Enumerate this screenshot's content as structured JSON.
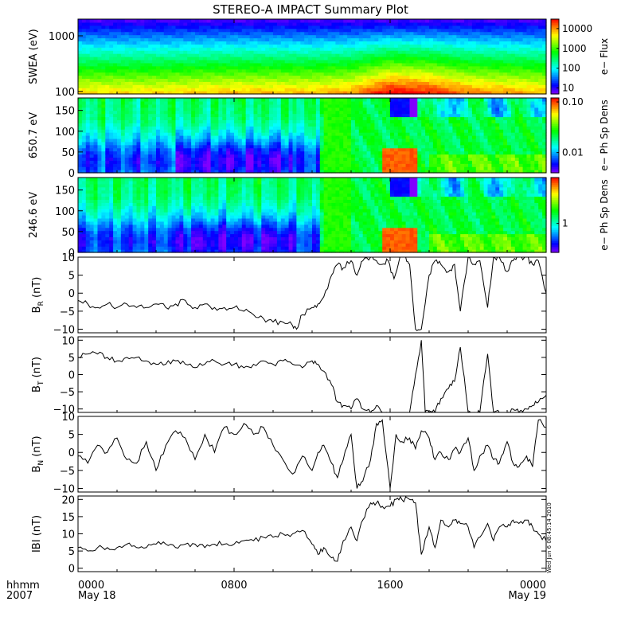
{
  "title": "STEREO-A IMPACT Summary Plot",
  "timestamp": "Wed Jun 6 08:45:14 2010",
  "time_axis": {
    "label_line1": "hhmm",
    "label_line2": "2007",
    "ticks": [
      {
        "hours": 0,
        "label": "0000",
        "date": "May 18"
      },
      {
        "hours": 8,
        "label": "0800",
        "date": ""
      },
      {
        "hours": 16,
        "label": "1600",
        "date": ""
      },
      {
        "hours": 24,
        "label": "0000",
        "date": "May 19"
      }
    ],
    "range_hours": [
      0,
      24
    ]
  },
  "chart_data": [
    {
      "type": "heatmap",
      "id": "swea",
      "ylabel": "SWEA (eV)",
      "yscale": "log",
      "ylim": [
        90,
        2000
      ],
      "yticks": [
        {
          "v": 100,
          "label": "100"
        },
        {
          "v": 1000,
          "label": "1000"
        }
      ],
      "colorbar": {
        "label": "e− Flux",
        "scale": "log",
        "range": [
          5,
          30000
        ],
        "ticks": [
          {
            "v": 10,
            "label": "10"
          },
          {
            "v": 100,
            "label": "100"
          },
          {
            "v": 1000,
            "label": "1000"
          },
          {
            "v": 10000,
            "label": "10000"
          }
        ]
      },
      "description_profile": {
        "hours": [
          0,
          4,
          8,
          12,
          14,
          16,
          18,
          20,
          22,
          24
        ],
        "enhancement": [
          0.0,
          0.0,
          0.05,
          0.05,
          0.1,
          0.35,
          0.3,
          0.15,
          0.1,
          0.05
        ]
      }
    },
    {
      "type": "heatmap",
      "id": "pad650",
      "ylabel": "650.7 eV",
      "ylim": [
        0,
        180
      ],
      "yticks": [
        {
          "v": 0,
          "label": "0"
        },
        {
          "v": 50,
          "label": "50"
        },
        {
          "v": 100,
          "label": "100"
        },
        {
          "v": 150,
          "label": "150"
        }
      ],
      "colorbar": {
        "label": "e− Ph Sp Dens",
        "scale": "log",
        "range": [
          0.004,
          0.12
        ],
        "ticks": [
          {
            "v": 0.01,
            "label": "0.01"
          },
          {
            "v": 0.1,
            "label": "0.10"
          }
        ]
      }
    },
    {
      "type": "heatmap",
      "id": "pad246",
      "ylabel": "246.6 eV",
      "ylim": [
        0,
        180
      ],
      "yticks": [
        {
          "v": 0,
          "label": "0"
        },
        {
          "v": 50,
          "label": "50"
        },
        {
          "v": 100,
          "label": "100"
        },
        {
          "v": 150,
          "label": "150"
        }
      ],
      "colorbar": {
        "label": "e− Ph Sp Dens",
        "scale": "log",
        "range": [
          0.5,
          3.0
        ],
        "ticks": [
          {
            "v": 1,
            "label": "1"
          }
        ]
      }
    },
    {
      "type": "line",
      "id": "br",
      "ylabel_main": "B",
      "ylabel_sub": "R",
      "ylabel_unit": " (nT)",
      "ylim": [
        -11,
        10
      ],
      "yticks": [
        {
          "v": -10,
          "label": "−10"
        },
        {
          "v": -5,
          "label": "−5"
        },
        {
          "v": 0,
          "label": "0"
        },
        {
          "v": 5,
          "label": "5"
        },
        {
          "v": 10,
          "label": "10"
        }
      ],
      "x": [
        0,
        0.5,
        1,
        1.5,
        2,
        2.5,
        3,
        3.5,
        4,
        4.5,
        5,
        5.5,
        6,
        6.5,
        7,
        7.5,
        8,
        8.5,
        9,
        9.5,
        10,
        10.5,
        11,
        11.2,
        11.5,
        12,
        12.3,
        12.6,
        13,
        13.3,
        13.6,
        14,
        14.3,
        14.6,
        15,
        15.3,
        15.6,
        15.9,
        16.2,
        16.5,
        16.8,
        17,
        17.3,
        17.6,
        18,
        18.3,
        18.6,
        19,
        19.3,
        19.6,
        20,
        20.3,
        20.6,
        21,
        21.3,
        21.6,
        22,
        22.3,
        22.6,
        23,
        23.3,
        23.6,
        24
      ],
      "y": [
        -2,
        -3,
        -4,
        -3,
        -4,
        -3,
        -4,
        -4,
        -3,
        -4,
        -3,
        -2,
        -4,
        -3,
        -4,
        -4,
        -4,
        -5,
        -6,
        -7,
        -8,
        -8,
        -9,
        -10,
        -6,
        -4,
        -3,
        -1,
        5,
        8,
        7,
        9,
        5,
        9,
        10,
        9,
        8,
        9,
        4,
        10,
        10,
        8,
        -10,
        -10,
        5,
        9,
        8,
        6,
        8,
        -5,
        10,
        8,
        9,
        -4,
        10,
        10,
        6,
        9,
        10,
        10,
        8,
        9,
        0
      ]
    },
    {
      "type": "line",
      "id": "bt",
      "ylabel_main": "B",
      "ylabel_sub": "T",
      "ylabel_unit": " (nT)",
      "ylim": [
        -11,
        11
      ],
      "yticks": [
        {
          "v": -10,
          "label": "−10"
        },
        {
          "v": -5,
          "label": "−5"
        },
        {
          "v": 0,
          "label": "0"
        },
        {
          "v": 5,
          "label": "5"
        },
        {
          "v": 10,
          "label": "10"
        }
      ],
      "x": [
        0,
        0.5,
        1,
        1.5,
        2,
        2.5,
        3,
        3.5,
        4,
        4.5,
        5,
        5.5,
        6,
        6.5,
        7,
        7.5,
        8,
        8.5,
        9,
        9.5,
        10,
        10.5,
        11,
        11.5,
        12,
        12.3,
        12.6,
        13,
        13.3,
        13.6,
        14,
        14.3,
        14.6,
        15,
        15.3,
        15.6,
        16,
        16.5,
        17,
        17.3,
        17.6,
        17.8,
        18,
        18.3,
        18.6,
        19,
        19.3,
        19.6,
        20,
        20.3,
        20.6,
        21,
        21.3,
        21.6,
        22,
        22.3,
        22.6,
        23,
        23.3,
        23.6,
        24
      ],
      "y": [
        5,
        6,
        6,
        5,
        4,
        5,
        5,
        4,
        3,
        3,
        4,
        3,
        2,
        3,
        4,
        3,
        3,
        2,
        3,
        4,
        3,
        4,
        3,
        2,
        4,
        3,
        1,
        -3,
        -8,
        -9,
        -10,
        -7,
        -10,
        -11,
        -9,
        -11,
        -11,
        -11,
        -11,
        0,
        10,
        -11,
        -11,
        -11,
        -7,
        -4,
        -2,
        8,
        -11,
        -11,
        -11,
        6,
        -11,
        -11,
        -11,
        -10,
        -11,
        -10,
        -9,
        -8,
        -6
      ]
    },
    {
      "type": "line",
      "id": "bn",
      "ylabel_main": "B",
      "ylabel_sub": "N",
      "ylabel_unit": " (nT)",
      "ylim": [
        -11,
        10
      ],
      "yticks": [
        {
          "v": -10,
          "label": "−10"
        },
        {
          "v": -5,
          "label": "−5"
        },
        {
          "v": 0,
          "label": "0"
        },
        {
          "v": 5,
          "label": "5"
        },
        {
          "v": 10,
          "label": "10"
        }
      ],
      "x": [
        0,
        0.5,
        1,
        1.5,
        2,
        2.5,
        3,
        3.5,
        4,
        4.5,
        5,
        5.5,
        6,
        6.5,
        7,
        7.5,
        8,
        8.5,
        9,
        9.5,
        10,
        10.5,
        11,
        11.5,
        12,
        12.3,
        12.6,
        13,
        13.3,
        13.6,
        14,
        14.3,
        14.6,
        15,
        15.3,
        15.6,
        16,
        16.3,
        16.6,
        17,
        17.3,
        17.6,
        18,
        18.3,
        18.6,
        19,
        19.3,
        19.6,
        20,
        20.3,
        20.6,
        21,
        21.3,
        21.6,
        22,
        22.3,
        22.6,
        23,
        23.3,
        23.6,
        24
      ],
      "y": [
        -1,
        -3,
        2,
        0,
        4,
        -2,
        -3,
        3,
        -5,
        2,
        6,
        4,
        -2,
        5,
        0,
        7,
        5,
        8,
        5,
        7,
        2,
        -2,
        -6,
        -1,
        -5,
        0,
        2,
        -3,
        -7,
        -2,
        5,
        -10,
        -8,
        -2,
        8,
        9,
        -10,
        5,
        3,
        4,
        1,
        6,
        4,
        -2,
        0,
        -2,
        1,
        0,
        4,
        -5,
        -1,
        2,
        -2,
        -3,
        3,
        -3,
        -4,
        -1,
        -4,
        9,
        7
      ]
    },
    {
      "type": "line",
      "id": "bmag",
      "ylabel_main": "IBI",
      "ylabel_sub": "",
      "ylabel_unit": " (nT)",
      "ylim": [
        -1,
        21
      ],
      "yticks": [
        {
          "v": 0,
          "label": "0"
        },
        {
          "v": 5,
          "label": "5"
        },
        {
          "v": 10,
          "label": "10"
        },
        {
          "v": 15,
          "label": "15"
        },
        {
          "v": 20,
          "label": "20"
        }
      ],
      "x": [
        0,
        0.5,
        1,
        1.5,
        2,
        2.5,
        3,
        3.5,
        4,
        4.5,
        5,
        5.5,
        6,
        6.5,
        7,
        7.5,
        8,
        8.5,
        9,
        9.5,
        10,
        10.5,
        11,
        11.5,
        12,
        12.3,
        12.6,
        13,
        13.3,
        13.6,
        14,
        14.3,
        14.6,
        15,
        15.3,
        15.6,
        16,
        16.3,
        16.6,
        17,
        17.3,
        17.6,
        18,
        18.3,
        18.6,
        19,
        19.3,
        19.6,
        20,
        20.3,
        20.6,
        21,
        21.3,
        21.6,
        22,
        22.3,
        22.6,
        23,
        23.3,
        23.6,
        24
      ],
      "y": [
        6,
        5,
        6,
        6,
        6,
        7,
        6,
        6,
        7,
        7,
        6,
        7,
        7,
        6,
        7,
        7,
        7,
        8,
        8,
        9,
        9,
        10,
        10,
        11,
        7,
        4,
        6,
        3,
        2,
        8,
        12,
        8,
        14,
        19,
        19,
        18,
        18,
        20,
        20,
        20,
        19,
        4,
        12,
        6,
        14,
        12,
        14,
        13,
        12,
        6,
        9,
        13,
        8,
        12,
        12,
        14,
        13,
        14,
        12,
        10,
        8
      ]
    }
  ]
}
